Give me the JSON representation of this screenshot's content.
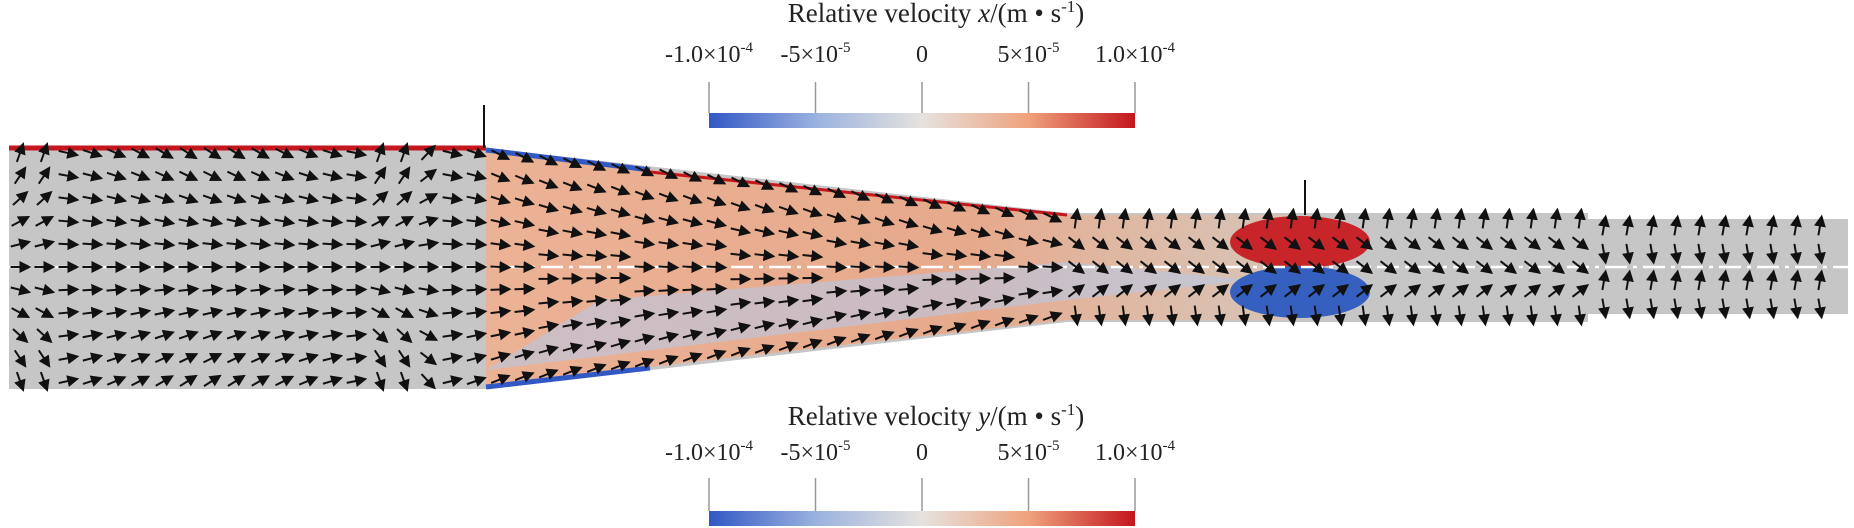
{
  "colorbars": [
    {
      "title": {
        "prefix": "Relative velocity",
        "variable": "x",
        "unit": "/(m • s",
        "unit_exponent": "-1",
        "close": ")"
      },
      "lim": [
        -0.0001,
        0.0001
      ],
      "ticks": [
        {
          "value": -0.0001,
          "mantissa": "-1.0×10",
          "exponent": "-4"
        },
        {
          "value": -5e-05,
          "mantissa": "-5×10",
          "exponent": "-5"
        },
        0,
        {
          "value": 5e-05,
          "mantissa": "5×10",
          "exponent": "-5"
        },
        {
          "value": 0.0001,
          "mantissa": "1.0×10",
          "exponent": "-4"
        }
      ]
    },
    {
      "title": {
        "prefix": "Relative velocity",
        "variable": "y",
        "unit": "/(m • s",
        "unit_exponent": "-1",
        "close": ")"
      },
      "lim": [
        -0.0001,
        0.0001
      ],
      "ticks": [
        {
          "value": -0.0001,
          "mantissa": "-1.0×10",
          "exponent": "-4"
        },
        {
          "value": -5e-05,
          "mantissa": "-5×10",
          "exponent": "-5"
        },
        0,
        {
          "value": 5e-05,
          "mantissa": "5×10",
          "exponent": "-5"
        },
        {
          "value": 0.0001,
          "mantissa": "1.0×10",
          "exponent": "-4"
        }
      ]
    }
  ]
}
